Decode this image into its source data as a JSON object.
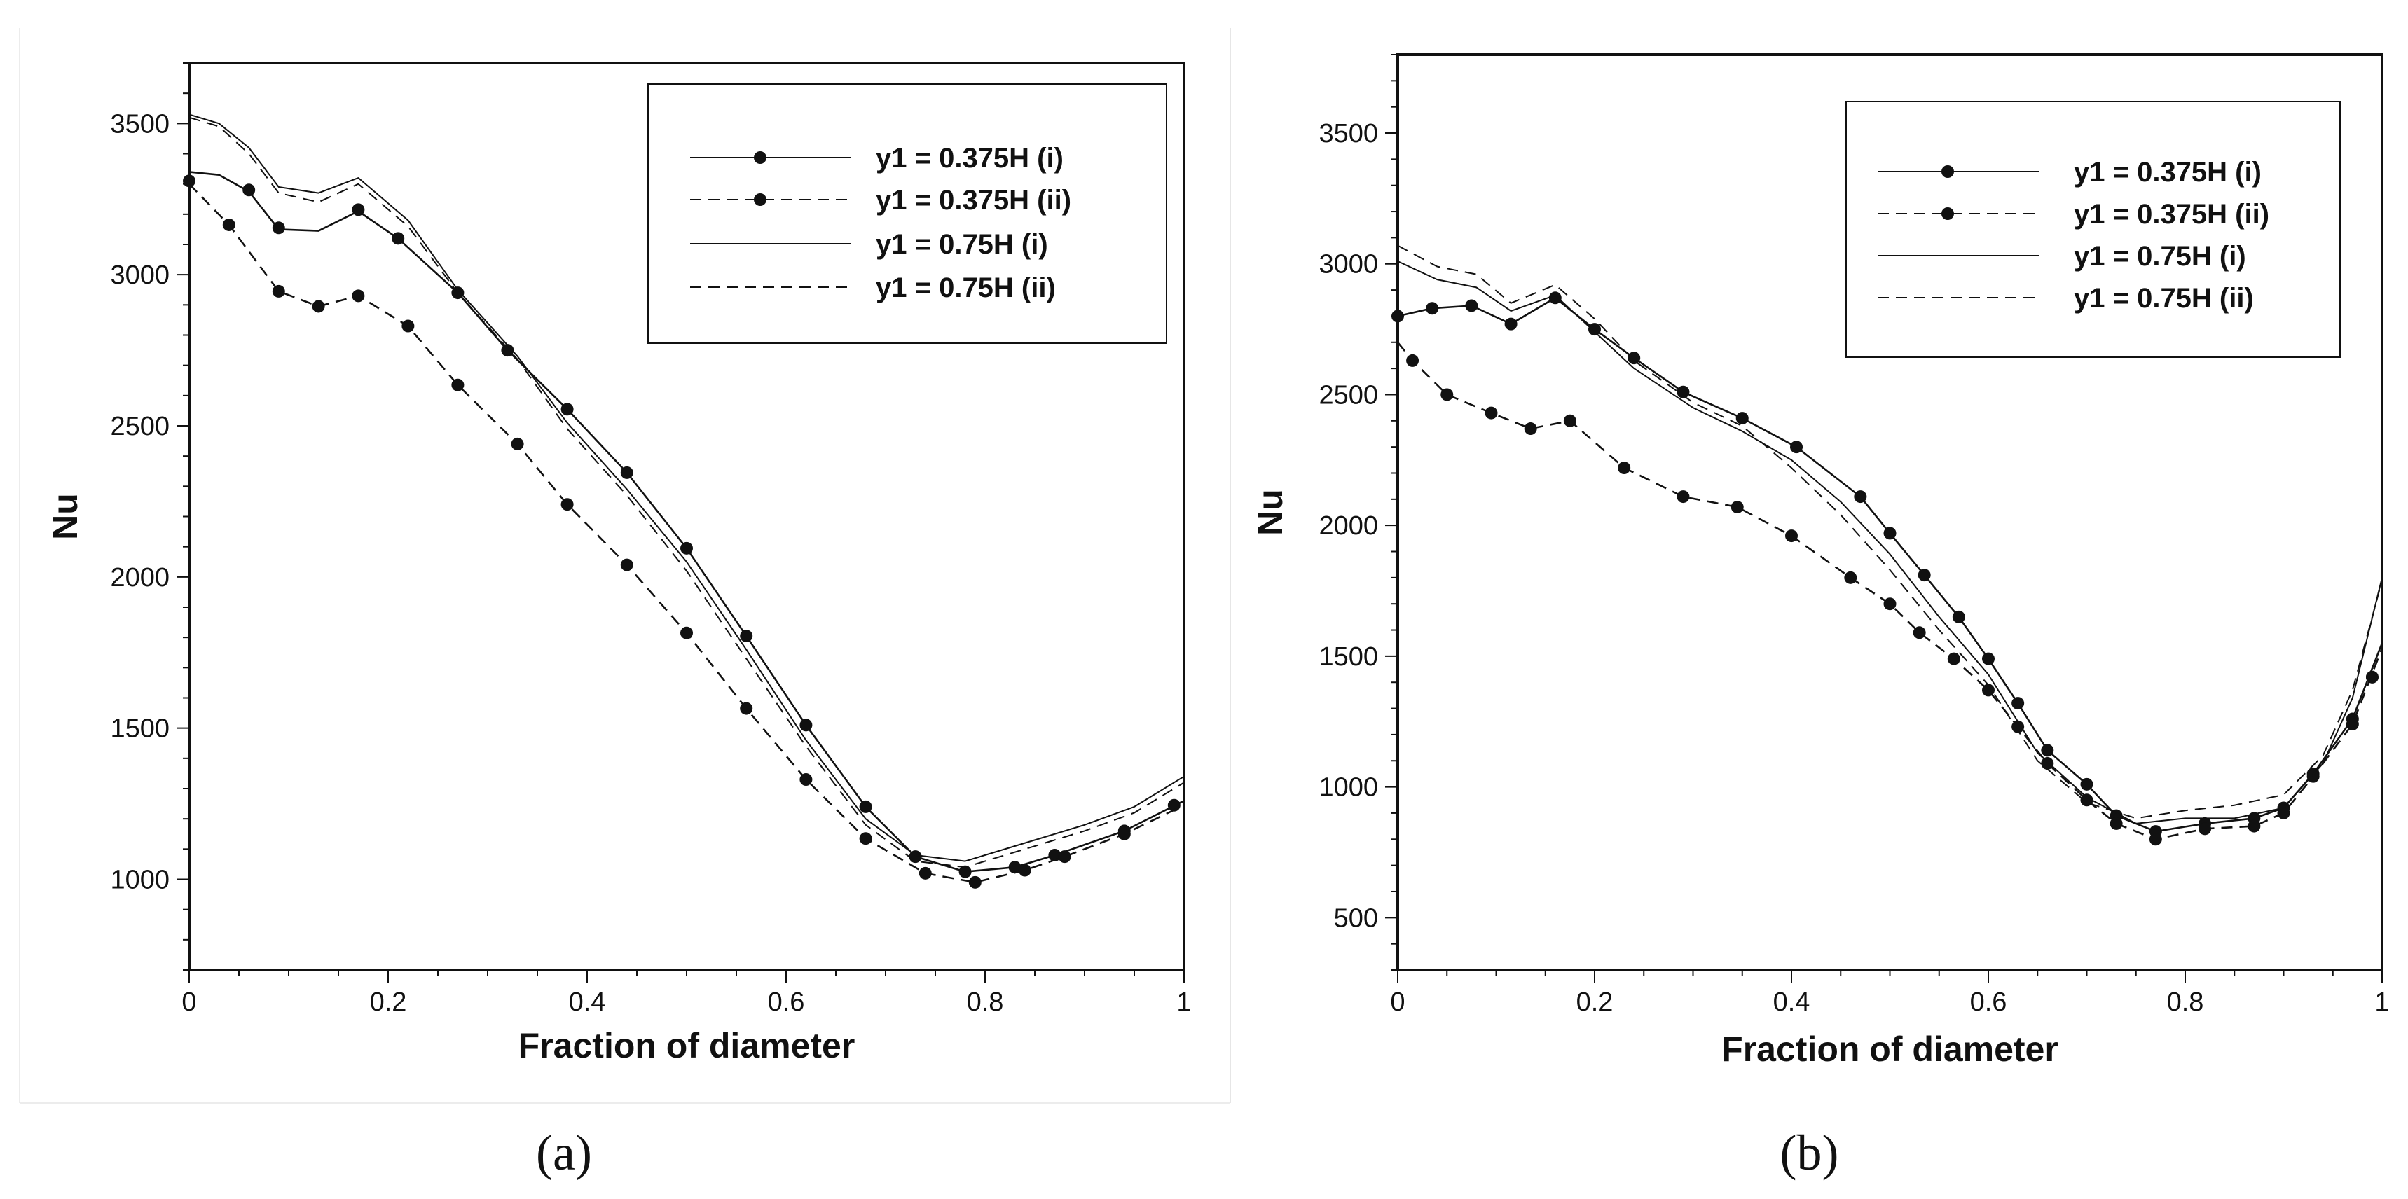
{
  "chart_data": [
    {
      "type": "line",
      "panel_label": "(a)",
      "xlabel": "Fraction of diameter",
      "ylabel": "Nu",
      "xlim": [
        0,
        1
      ],
      "ylim": [
        700,
        3700
      ],
      "x_ticks": [
        {
          "value": 0,
          "label": "0"
        },
        {
          "value": 0.2,
          "label": "0.2"
        },
        {
          "value": 0.4,
          "label": "0.4"
        },
        {
          "value": 0.6,
          "label": "0.6"
        },
        {
          "value": 0.8,
          "label": "0.8"
        },
        {
          "value": 1,
          "label": "1"
        }
      ],
      "y_ticks": [
        {
          "value": 1000,
          "label": "1000"
        },
        {
          "value": 1500,
          "label": "1500"
        },
        {
          "value": 2000,
          "label": "2000"
        },
        {
          "value": 2500,
          "label": "2500"
        },
        {
          "value": 3000,
          "label": "3000"
        },
        {
          "value": 3500,
          "label": "3500"
        }
      ],
      "legend_position": "top-right",
      "series": [
        {
          "name": "y1 = 0.375H (i)",
          "line": "solid",
          "markers": true,
          "x": [
            0,
            0.03,
            0.06,
            0.09,
            0.13,
            0.17,
            0.21,
            0.27,
            0.32,
            0.38,
            0.44,
            0.5,
            0.56,
            0.62,
            0.68,
            0.73,
            0.78,
            0.83,
            0.87,
            0.94,
            1.0
          ],
          "y": [
            3340,
            3330,
            3275,
            3150,
            3145,
            3210,
            3120,
            2940,
            2750,
            2555,
            2345,
            2095,
            1805,
            1510,
            1240,
            1075,
            1025,
            1040,
            1080,
            1160,
            1260
          ],
          "marker_x": [
            0,
            0.06,
            0.09,
            0.17,
            0.21,
            0.27,
            0.32,
            0.38,
            0.44,
            0.5,
            0.56,
            0.62,
            0.68,
            0.73,
            0.78,
            0.83,
            0.87,
            0.94,
            0.99
          ],
          "marker_y": [
            3310,
            3280,
            3155,
            3215,
            3120,
            2940,
            2750,
            2555,
            2345,
            2095,
            1805,
            1510,
            1240,
            1075,
            1025,
            1040,
            1080,
            1160,
            1245
          ]
        },
        {
          "name": "y1 = 0.375H (ii)",
          "line": "dashed",
          "markers": true,
          "x": [
            0,
            0.04,
            0.09,
            0.13,
            0.17,
            0.22,
            0.27,
            0.33,
            0.38,
            0.44,
            0.5,
            0.56,
            0.62,
            0.68,
            0.74,
            0.79,
            0.84,
            0.88,
            0.94,
            1.0
          ],
          "y": [
            3300,
            3165,
            2945,
            2895,
            2930,
            2830,
            2635,
            2440,
            2240,
            2040,
            1815,
            1565,
            1330,
            1135,
            1020,
            990,
            1030,
            1075,
            1150,
            1245
          ],
          "marker_x": [
            0.04,
            0.09,
            0.13,
            0.17,
            0.22,
            0.27,
            0.33,
            0.38,
            0.44,
            0.5,
            0.56,
            0.62,
            0.68,
            0.74,
            0.79,
            0.84,
            0.88,
            0.94
          ],
          "marker_y": [
            3165,
            2945,
            2895,
            2930,
            2830,
            2635,
            2440,
            2240,
            2040,
            1815,
            1565,
            1330,
            1135,
            1020,
            990,
            1030,
            1075,
            1150
          ]
        },
        {
          "name": "y1 = 0.75H (i)",
          "line": "solid",
          "markers": false,
          "x": [
            0,
            0.03,
            0.06,
            0.09,
            0.13,
            0.17,
            0.22,
            0.27,
            0.33,
            0.38,
            0.44,
            0.5,
            0.56,
            0.62,
            0.68,
            0.73,
            0.78,
            0.83,
            0.9,
            0.95,
            1.0
          ],
          "y": [
            3530,
            3500,
            3420,
            3290,
            3270,
            3320,
            3180,
            2950,
            2730,
            2510,
            2290,
            2050,
            1760,
            1460,
            1200,
            1080,
            1060,
            1110,
            1180,
            1240,
            1340
          ]
        },
        {
          "name": "y1 = 0.75H (ii)",
          "line": "dashed",
          "markers": false,
          "x": [
            0,
            0.03,
            0.06,
            0.09,
            0.13,
            0.17,
            0.22,
            0.27,
            0.33,
            0.38,
            0.44,
            0.5,
            0.56,
            0.62,
            0.68,
            0.73,
            0.78,
            0.83,
            0.9,
            0.95,
            1.0
          ],
          "y": [
            3520,
            3490,
            3400,
            3270,
            3240,
            3300,
            3160,
            2940,
            2720,
            2490,
            2270,
            2020,
            1730,
            1440,
            1180,
            1060,
            1040,
            1090,
            1160,
            1220,
            1320
          ]
        }
      ]
    },
    {
      "type": "line",
      "panel_label": "(b)",
      "xlabel": "Fraction of diameter",
      "ylabel": "Nu",
      "xlim": [
        0,
        1
      ],
      "ylim": [
        300,
        3800
      ],
      "x_ticks": [
        {
          "value": 0,
          "label": "0"
        },
        {
          "value": 0.2,
          "label": "0.2"
        },
        {
          "value": 0.4,
          "label": "0.4"
        },
        {
          "value": 0.6,
          "label": "0.6"
        },
        {
          "value": 0.8,
          "label": "0.8"
        },
        {
          "value": 1,
          "label": "1"
        }
      ],
      "y_ticks": [
        {
          "value": 500,
          "label": "500"
        },
        {
          "value": 1000,
          "label": "1000"
        },
        {
          "value": 1500,
          "label": "1500"
        },
        {
          "value": 2000,
          "label": "2000"
        },
        {
          "value": 2500,
          "label": "2500"
        },
        {
          "value": 3000,
          "label": "3000"
        },
        {
          "value": 3500,
          "label": "3500"
        }
      ],
      "legend_position": "top-right",
      "series": [
        {
          "name": "y1 = 0.375H (i)",
          "line": "solid",
          "markers": true,
          "x": [
            0,
            0.035,
            0.075,
            0.115,
            0.16,
            0.2,
            0.24,
            0.29,
            0.35,
            0.405,
            0.47,
            0.5,
            0.535,
            0.57,
            0.6,
            0.63,
            0.66,
            0.7,
            0.73,
            0.77,
            0.82,
            0.87,
            0.9,
            0.93,
            0.97,
            1.0
          ],
          "y": [
            2800,
            2830,
            2840,
            2770,
            2870,
            2750,
            2640,
            2510,
            2410,
            2300,
            2110,
            1970,
            1810,
            1650,
            1490,
            1320,
            1140,
            1010,
            890,
            830,
            860,
            880,
            920,
            1050,
            1260,
            1550
          ],
          "marker_x": [
            0,
            0.035,
            0.075,
            0.115,
            0.16,
            0.2,
            0.24,
            0.29,
            0.35,
            0.405,
            0.47,
            0.5,
            0.535,
            0.57,
            0.6,
            0.63,
            0.66,
            0.7,
            0.73,
            0.77,
            0.82,
            0.87,
            0.9,
            0.93,
            0.97,
            0.99
          ],
          "marker_y": [
            2800,
            2830,
            2840,
            2770,
            2870,
            2750,
            2640,
            2510,
            2410,
            2300,
            2110,
            1970,
            1810,
            1650,
            1490,
            1320,
            1140,
            1010,
            890,
            830,
            860,
            880,
            920,
            1050,
            1260,
            1420
          ]
        },
        {
          "name": "y1 = 0.375H (ii)",
          "line": "dashed",
          "markers": true,
          "x": [
            0,
            0.015,
            0.05,
            0.095,
            0.135,
            0.175,
            0.23,
            0.29,
            0.345,
            0.4,
            0.46,
            0.5,
            0.53,
            0.565,
            0.6,
            0.63,
            0.66,
            0.7,
            0.73,
            0.77,
            0.82,
            0.87,
            0.9,
            0.93,
            0.97,
            1.0
          ],
          "y": [
            2700,
            2630,
            2500,
            2430,
            2370,
            2400,
            2220,
            2110,
            2070,
            1960,
            1800,
            1700,
            1590,
            1490,
            1370,
            1230,
            1090,
            950,
            860,
            800,
            840,
            850,
            900,
            1040,
            1240,
            1530
          ],
          "marker_x": [
            0.015,
            0.05,
            0.095,
            0.135,
            0.175,
            0.23,
            0.29,
            0.345,
            0.4,
            0.46,
            0.5,
            0.53,
            0.565,
            0.6,
            0.63,
            0.66,
            0.7,
            0.73,
            0.77,
            0.82,
            0.87,
            0.9,
            0.93,
            0.97,
            0.99
          ],
          "marker_y": [
            2630,
            2500,
            2430,
            2370,
            2400,
            2220,
            2110,
            2070,
            1960,
            1800,
            1700,
            1590,
            1490,
            1370,
            1230,
            1090,
            950,
            860,
            800,
            840,
            850,
            900,
            1040,
            1240,
            1420
          ]
        },
        {
          "name": "y1 = 0.75H (i)",
          "line": "solid",
          "markers": false,
          "x": [
            0,
            0.04,
            0.08,
            0.115,
            0.16,
            0.2,
            0.24,
            0.3,
            0.35,
            0.4,
            0.45,
            0.5,
            0.55,
            0.6,
            0.65,
            0.7,
            0.75,
            0.8,
            0.85,
            0.9,
            0.94,
            0.97,
            1.0
          ],
          "y": [
            3010,
            2940,
            2910,
            2820,
            2880,
            2740,
            2600,
            2450,
            2360,
            2250,
            2090,
            1890,
            1650,
            1430,
            1130,
            960,
            860,
            880,
            880,
            920,
            1090,
            1340,
            1800
          ]
        },
        {
          "name": "y1 = 0.75H (ii)",
          "line": "dashed",
          "markers": false,
          "x": [
            0,
            0.04,
            0.08,
            0.115,
            0.16,
            0.2,
            0.24,
            0.3,
            0.35,
            0.4,
            0.45,
            0.5,
            0.55,
            0.6,
            0.65,
            0.7,
            0.75,
            0.8,
            0.85,
            0.9,
            0.94,
            0.97,
            1.0
          ],
          "y": [
            3070,
            2990,
            2960,
            2850,
            2920,
            2790,
            2630,
            2470,
            2380,
            2220,
            2040,
            1830,
            1600,
            1390,
            1100,
            940,
            880,
            910,
            930,
            970,
            1120,
            1370,
            1790
          ]
        }
      ]
    }
  ]
}
